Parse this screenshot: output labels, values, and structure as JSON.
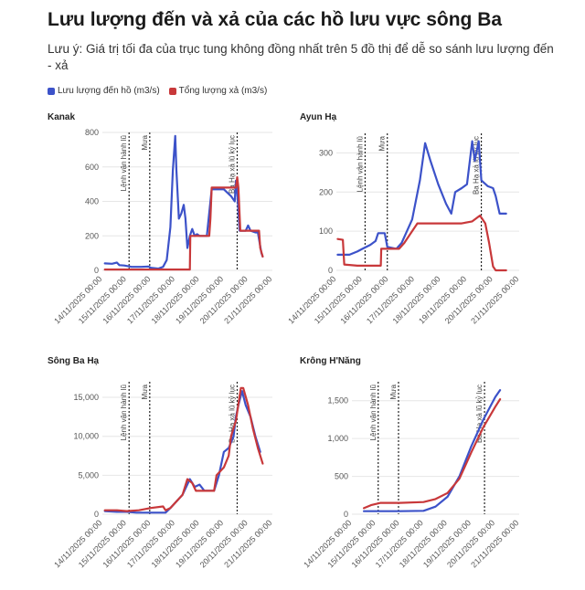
{
  "title": "Lưu lượng đến và xả của các hồ lưu vực sông Ba",
  "subtitle": "Lưu ý: Giá trị tối đa của trục tung không đồng nhất trên 5 đồ thị để dễ so sánh lưu lượng đến - xả",
  "legend": [
    {
      "label": "Lưu lượng đến hồ (m3/s)",
      "color": "#3c52c9"
    },
    {
      "label": "Tổng lượng xả (m3/s)",
      "color": "#c8383a"
    }
  ],
  "colors": {
    "inflow": "#3c52c9",
    "outflow": "#c8383a"
  },
  "chart_data": [
    {
      "type": "line",
      "title": "Kanak",
      "x_labels": [
        "14/11/2025 00:00",
        "15/11/2025 00:00",
        "16/11/2025 00:00",
        "17/11/2025 00:00",
        "18/11/2025 00:00",
        "19/11/2025 00:00",
        "20/11/2025 00:00",
        "21/11/2025 00:00"
      ],
      "xlim": [
        0,
        7
      ],
      "ylim": [
        0,
        800
      ],
      "yticks": [
        0,
        200,
        400,
        600,
        800
      ],
      "annotations": [
        {
          "x": 1.1,
          "label": "Lệnh vận hành lũ"
        },
        {
          "x": 1.95,
          "label": "Mưa"
        },
        {
          "x": 5.55,
          "label": "Ba Hạ xả lũ kỷ lục"
        }
      ],
      "series": [
        {
          "name": "Lưu lượng đến hồ (m3/s)",
          "points": [
            [
              0.1,
              40
            ],
            [
              0.4,
              38
            ],
            [
              0.6,
              45
            ],
            [
              0.7,
              30
            ],
            [
              0.9,
              28
            ],
            [
              1.2,
              20
            ],
            [
              1.6,
              20
            ],
            [
              1.9,
              22
            ],
            [
              2.0,
              15
            ],
            [
              2.3,
              10
            ],
            [
              2.5,
              20
            ],
            [
              2.65,
              60
            ],
            [
              2.8,
              250
            ],
            [
              2.9,
              580
            ],
            [
              3.0,
              780
            ],
            [
              3.05,
              580
            ],
            [
              3.15,
              300
            ],
            [
              3.25,
              330
            ],
            [
              3.35,
              380
            ],
            [
              3.42,
              300
            ],
            [
              3.5,
              130
            ],
            [
              3.6,
              200
            ],
            [
              3.7,
              240
            ],
            [
              3.8,
              200
            ],
            [
              3.9,
              210
            ],
            [
              4.0,
              200
            ],
            [
              4.3,
              200
            ],
            [
              4.5,
              470
            ],
            [
              4.8,
              470
            ],
            [
              5.0,
              470
            ],
            [
              5.3,
              430
            ],
            [
              5.45,
              400
            ],
            [
              5.5,
              520
            ],
            [
              5.56,
              440
            ],
            [
              5.65,
              230
            ],
            [
              5.9,
              230
            ],
            [
              6.0,
              260
            ],
            [
              6.1,
              230
            ],
            [
              6.3,
              220
            ],
            [
              6.4,
              220
            ],
            [
              6.5,
              140
            ],
            [
              6.55,
              100
            ],
            [
              6.6,
              80
            ]
          ]
        },
        {
          "name": "Tổng lượng xả (m3/s)",
          "points": [
            [
              0.1,
              5
            ],
            [
              1.0,
              5
            ],
            [
              1.5,
              5
            ],
            [
              2.5,
              5
            ],
            [
              3.0,
              5
            ],
            [
              3.3,
              5
            ],
            [
              3.6,
              5
            ],
            [
              3.62,
              200
            ],
            [
              4.4,
              200
            ],
            [
              4.45,
              300
            ],
            [
              4.5,
              480
            ],
            [
              5.4,
              480
            ],
            [
              5.5,
              480
            ],
            [
              5.55,
              540
            ],
            [
              5.6,
              480
            ],
            [
              5.68,
              230
            ],
            [
              6.3,
              230
            ],
            [
              6.35,
              230
            ],
            [
              6.45,
              230
            ],
            [
              6.5,
              130
            ],
            [
              6.6,
              80
            ]
          ]
        }
      ]
    },
    {
      "type": "line",
      "title": "Ayun Hạ",
      "x_labels": [
        "14/11/2025 00:00",
        "15/11/2025 00:00",
        "16/11/2025 00:00",
        "17/11/2025 00:00",
        "18/11/2025 00:00",
        "19/11/2025 00:00",
        "20/11/2025 00:00",
        "21/11/2025 00:00"
      ],
      "xlim": [
        0,
        7
      ],
      "ylim": [
        0,
        350
      ],
      "yticks": [
        0,
        100,
        200,
        300
      ],
      "annotations": [
        {
          "x": 1.1,
          "label": "Lệnh vận hành lũ"
        },
        {
          "x": 1.95,
          "label": "Mưa"
        },
        {
          "x": 5.55,
          "label": "Ba Hạ xả lũ kỷ lục"
        }
      ],
      "series": [
        {
          "name": "Lưu lượng đến hồ (m3/s)",
          "points": [
            [
              0.05,
              40
            ],
            [
              0.5,
              40
            ],
            [
              0.8,
              48
            ],
            [
              1.0,
              55
            ],
            [
              1.3,
              65
            ],
            [
              1.5,
              75
            ],
            [
              1.6,
              95
            ],
            [
              1.85,
              95
            ],
            [
              1.95,
              60
            ],
            [
              2.3,
              55
            ],
            [
              2.5,
              70
            ],
            [
              2.9,
              130
            ],
            [
              3.2,
              230
            ],
            [
              3.4,
              325
            ],
            [
              3.6,
              280
            ],
            [
              3.9,
              220
            ],
            [
              4.2,
              170
            ],
            [
              4.4,
              145
            ],
            [
              4.55,
              200
            ],
            [
              4.8,
              210
            ],
            [
              5.0,
              220
            ],
            [
              5.2,
              330
            ],
            [
              5.3,
              280
            ],
            [
              5.45,
              330
            ],
            [
              5.55,
              230
            ],
            [
              5.8,
              215
            ],
            [
              6.0,
              210
            ],
            [
              6.1,
              190
            ],
            [
              6.25,
              145
            ],
            [
              6.5,
              145
            ]
          ]
        },
        {
          "name": "Tổng lượng xả (m3/s)",
          "points": [
            [
              0.05,
              80
            ],
            [
              0.25,
              78
            ],
            [
              0.3,
              15
            ],
            [
              0.8,
              12
            ],
            [
              1.5,
              12
            ],
            [
              1.7,
              12
            ],
            [
              1.72,
              55
            ],
            [
              2.4,
              55
            ],
            [
              2.6,
              70
            ],
            [
              2.9,
              100
            ],
            [
              3.1,
              120
            ],
            [
              4.8,
              120
            ],
            [
              5.2,
              125
            ],
            [
              5.5,
              140
            ],
            [
              5.7,
              120
            ],
            [
              5.85,
              70
            ],
            [
              6.0,
              10
            ],
            [
              6.1,
              0
            ],
            [
              6.5,
              0
            ]
          ]
        }
      ]
    },
    {
      "type": "line",
      "title": "Sông Ba Hạ",
      "x_labels": [
        "14/11/2025 00:00",
        "15/11/2025 00:00",
        "16/11/2025 00:00",
        "17/11/2025 00:00",
        "18/11/2025 00:00",
        "19/11/2025 00:00",
        "20/11/2025 00:00",
        "21/11/2025 00:00"
      ],
      "xlim": [
        0,
        7
      ],
      "ylim": [
        0,
        17000
      ],
      "yticks": [
        0,
        5000,
        10000,
        15000
      ],
      "annotations": [
        {
          "x": 1.1,
          "label": "Lệnh vận hành lũ"
        },
        {
          "x": 1.95,
          "label": "Mưa"
        },
        {
          "x": 5.55,
          "label": "Ba Hạ xả lũ kỷ lục"
        }
      ],
      "series": [
        {
          "name": "Lưu lượng đến hồ (m3/s)",
          "points": [
            [
              0.1,
              400
            ],
            [
              0.6,
              300
            ],
            [
              1.0,
              300
            ],
            [
              1.4,
              200
            ],
            [
              1.8,
              200
            ],
            [
              2.2,
              200
            ],
            [
              2.6,
              200
            ],
            [
              2.8,
              800
            ],
            [
              3.3,
              2500
            ],
            [
              3.6,
              4500
            ],
            [
              3.8,
              3500
            ],
            [
              4.0,
              3800
            ],
            [
              4.2,
              3000
            ],
            [
              4.6,
              3000
            ],
            [
              4.8,
              5000
            ],
            [
              5.0,
              8000
            ],
            [
              5.2,
              8500
            ],
            [
              5.4,
              10000
            ],
            [
              5.5,
              12500
            ],
            [
              5.6,
              14000
            ],
            [
              5.75,
              15800
            ],
            [
              5.9,
              14000
            ],
            [
              6.1,
              12500
            ],
            [
              6.3,
              10000
            ],
            [
              6.5,
              8000
            ]
          ]
        },
        {
          "name": "Tổng lượng xả (m3/s)",
          "points": [
            [
              0.1,
              500
            ],
            [
              0.6,
              500
            ],
            [
              1.0,
              400
            ],
            [
              1.5,
              500
            ],
            [
              2.0,
              800
            ],
            [
              2.5,
              1000
            ],
            [
              2.6,
              500
            ],
            [
              2.8,
              800
            ],
            [
              3.3,
              2500
            ],
            [
              3.5,
              4500
            ],
            [
              3.7,
              4000
            ],
            [
              3.85,
              3000
            ],
            [
              4.6,
              3000
            ],
            [
              4.7,
              5000
            ],
            [
              5.0,
              6000
            ],
            [
              5.2,
              7500
            ],
            [
              5.3,
              10000
            ],
            [
              5.5,
              12000
            ],
            [
              5.7,
              16200
            ],
            [
              5.8,
              16200
            ],
            [
              6.0,
              14000
            ],
            [
              6.2,
              11000
            ],
            [
              6.4,
              8500
            ],
            [
              6.6,
              6500
            ]
          ]
        }
      ]
    },
    {
      "type": "line",
      "title": "Krông H'Năng",
      "x_labels": [
        "14/11/2025 00:00",
        "15/11/2025 00:00",
        "16/11/2025 00:00",
        "17/11/2025 00:00",
        "18/11/2025 00:00",
        "19/11/2025 00:00",
        "20/11/2025 00:00",
        "21/11/2025 00:00"
      ],
      "xlim": [
        0,
        7
      ],
      "ylim": [
        0,
        1750
      ],
      "yticks": [
        0,
        500,
        1000,
        1500
      ],
      "annotations": [
        {
          "x": 1.1,
          "label": "Lệnh vận hành lũ"
        },
        {
          "x": 1.95,
          "label": "Mưa"
        },
        {
          "x": 5.55,
          "label": "Ba Hạ xả lũ kỷ lục"
        }
      ],
      "series": [
        {
          "name": "Lưu lượng đến hồ (m3/s)",
          "points": [
            [
              0.5,
              40
            ],
            [
              1.0,
              40
            ],
            [
              2.0,
              40
            ],
            [
              3.0,
              45
            ],
            [
              3.5,
              100
            ],
            [
              4.0,
              230
            ],
            [
              4.5,
              500
            ],
            [
              5.0,
              900
            ],
            [
              5.5,
              1250
            ],
            [
              6.0,
              1550
            ],
            [
              6.2,
              1640
            ]
          ]
        },
        {
          "name": "Tổng lượng xả (m3/s)",
          "points": [
            [
              0.5,
              80
            ],
            [
              0.8,
              120
            ],
            [
              1.2,
              150
            ],
            [
              2.0,
              150
            ],
            [
              3.0,
              160
            ],
            [
              3.5,
              200
            ],
            [
              4.0,
              280
            ],
            [
              4.5,
              470
            ],
            [
              5.0,
              820
            ],
            [
              5.5,
              1150
            ],
            [
              6.0,
              1420
            ],
            [
              6.2,
              1520
            ]
          ]
        }
      ]
    }
  ]
}
